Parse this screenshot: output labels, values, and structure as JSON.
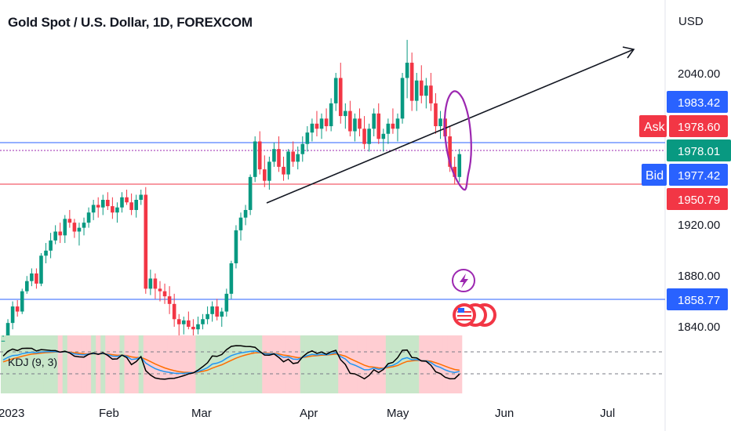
{
  "header": {
    "title": "Gold Spot / U.S. Dollar, 1D, FOREXCOM"
  },
  "colors": {
    "up": "#089981",
    "down": "#f23645",
    "bid_blue": "#2962ff",
    "ask_red": "#f23645",
    "current_green": "#089981",
    "annotation_purple": "#9c27b0",
    "trendline": "#131722",
    "kdj_k": "#2196f3",
    "kdj_d": "#ff6d00",
    "kdj_j": "#000000",
    "kdj_bg_up": "#c8e6c9",
    "kdj_bg_down": "#ffcdd2"
  },
  "chart_data": {
    "type": "candlestick",
    "currency_label": "USD",
    "y_ticks": [
      "2040.00",
      "1920.00",
      "1880.00",
      "1840.00"
    ],
    "x_ticks": [
      "2023",
      "Feb",
      "Mar",
      "Apr",
      "May",
      "Jun",
      "Jul"
    ],
    "price_tags": {
      "ask_price": "1983.42",
      "ask_label": "Ask",
      "ask_value": "1978.60",
      "current": "1978.01",
      "bid_label": "Bid",
      "bid_value": "1977.42",
      "support": "1950.79",
      "low_line": "1858.77"
    },
    "indicator": {
      "label": "KDJ (9, 3)"
    },
    "icons": [
      "lightning-event-icon",
      "us-flag-event-icon",
      "us-flag-event-icon",
      "us-flag-event-icon"
    ],
    "candles": [
      [
        1826,
        1832,
        1815,
        1829
      ],
      [
        1829,
        1846,
        1825,
        1843
      ],
      [
        1843,
        1860,
        1838,
        1856
      ],
      [
        1856,
        1861,
        1848,
        1852
      ],
      [
        1852,
        1870,
        1850,
        1868
      ],
      [
        1868,
        1880,
        1866,
        1876
      ],
      [
        1876,
        1886,
        1872,
        1882
      ],
      [
        1882,
        1886,
        1870,
        1874
      ],
      [
        1874,
        1898,
        1872,
        1896
      ],
      [
        1896,
        1906,
        1890,
        1900
      ],
      [
        1900,
        1914,
        1894,
        1908
      ],
      [
        1908,
        1920,
        1905,
        1915
      ],
      [
        1915,
        1922,
        1906,
        1912
      ],
      [
        1912,
        1928,
        1906,
        1925
      ],
      [
        1925,
        1932,
        1918,
        1922
      ],
      [
        1922,
        1925,
        1910,
        1915
      ],
      [
        1915,
        1922,
        1904,
        1918
      ],
      [
        1918,
        1926,
        1912,
        1922
      ],
      [
        1922,
        1934,
        1918,
        1930
      ],
      [
        1930,
        1940,
        1924,
        1936
      ],
      [
        1936,
        1942,
        1926,
        1934
      ],
      [
        1934,
        1944,
        1928,
        1940
      ],
      [
        1940,
        1946,
        1932,
        1935
      ],
      [
        1935,
        1942,
        1925,
        1930
      ],
      [
        1930,
        1938,
        1922,
        1934
      ],
      [
        1934,
        1946,
        1930,
        1942
      ],
      [
        1942,
        1948,
        1936,
        1938
      ],
      [
        1938,
        1945,
        1928,
        1932
      ],
      [
        1932,
        1944,
        1926,
        1940
      ],
      [
        1940,
        1948,
        1936,
        1944
      ],
      [
        1944,
        1950,
        1866,
        1870
      ],
      [
        1870,
        1885,
        1865,
        1878
      ],
      [
        1878,
        1882,
        1862,
        1870
      ],
      [
        1870,
        1876,
        1860,
        1868
      ],
      [
        1868,
        1874,
        1858,
        1864
      ],
      [
        1864,
        1872,
        1850,
        1858
      ],
      [
        1858,
        1866,
        1840,
        1846
      ],
      [
        1846,
        1850,
        1832,
        1842
      ],
      [
        1842,
        1848,
        1834,
        1845
      ],
      [
        1845,
        1852,
        1838,
        1840
      ],
      [
        1840,
        1846,
        1830,
        1838
      ],
      [
        1838,
        1848,
        1834,
        1842
      ],
      [
        1842,
        1850,
        1838,
        1846
      ],
      [
        1846,
        1856,
        1842,
        1850
      ],
      [
        1850,
        1860,
        1844,
        1856
      ],
      [
        1856,
        1862,
        1845,
        1848
      ],
      [
        1848,
        1855,
        1840,
        1852
      ],
      [
        1852,
        1870,
        1848,
        1866
      ],
      [
        1866,
        1892,
        1862,
        1890
      ],
      [
        1890,
        1920,
        1886,
        1916
      ],
      [
        1916,
        1930,
        1908,
        1926
      ],
      [
        1926,
        1936,
        1920,
        1932
      ],
      [
        1932,
        1960,
        1928,
        1958
      ],
      [
        1958,
        1990,
        1954,
        1986
      ],
      [
        1986,
        1994,
        1960,
        1964
      ],
      [
        1964,
        1975,
        1950,
        1955
      ],
      [
        1955,
        1974,
        1948,
        1970
      ],
      [
        1970,
        1985,
        1966,
        1980
      ],
      [
        1980,
        1990,
        1962,
        1966
      ],
      [
        1966,
        1974,
        1955,
        1960
      ],
      [
        1960,
        1980,
        1956,
        1978
      ],
      [
        1978,
        1986,
        1966,
        1970
      ],
      [
        1970,
        1982,
        1964,
        1976
      ],
      [
        1976,
        1990,
        1970,
        1984
      ],
      [
        1984,
        1998,
        1978,
        1993
      ],
      [
        1993,
        2004,
        1986,
        2000
      ],
      [
        2000,
        2010,
        1990,
        1996
      ],
      [
        1996,
        2008,
        1988,
        2004
      ],
      [
        2004,
        2012,
        1994,
        1998
      ],
      [
        1998,
        2020,
        1994,
        2016
      ],
      [
        2016,
        2040,
        2010,
        2036
      ],
      [
        2036,
        2048,
        2000,
        2006
      ],
      [
        2006,
        2016,
        1996,
        2010
      ],
      [
        2010,
        2018,
        1990,
        1994
      ],
      [
        1994,
        2008,
        1986,
        2004
      ],
      [
        2004,
        2012,
        1990,
        1996
      ],
      [
        1996,
        2006,
        1980,
        1984
      ],
      [
        1984,
        2000,
        1978,
        1996
      ],
      [
        1996,
        2012,
        1990,
        2008
      ],
      [
        2008,
        2016,
        1984,
        1988
      ],
      [
        1988,
        1996,
        1978,
        1992
      ],
      [
        1992,
        2004,
        1984,
        2000
      ],
      [
        2000,
        2012,
        1992,
        1996
      ],
      [
        1996,
        2008,
        1986,
        2004
      ],
      [
        2004,
        2040,
        2000,
        2036
      ],
      [
        2036,
        2066,
        2020,
        2048
      ],
      [
        2048,
        2056,
        2010,
        2018
      ],
      [
        2018,
        2040,
        2010,
        2034
      ],
      [
        2034,
        2046,
        2016,
        2022
      ],
      [
        2022,
        2036,
        2012,
        2030
      ],
      [
        2030,
        2040,
        2010,
        2016
      ],
      [
        2016,
        2024,
        1992,
        1998
      ],
      [
        1998,
        2010,
        1988,
        2004
      ],
      [
        2004,
        2010,
        1986,
        1990
      ],
      [
        1990,
        1998,
        1962,
        1966
      ],
      [
        1966,
        1974,
        1952,
        1958
      ],
      [
        1958,
        1980,
        1954,
        1976
      ]
    ]
  }
}
